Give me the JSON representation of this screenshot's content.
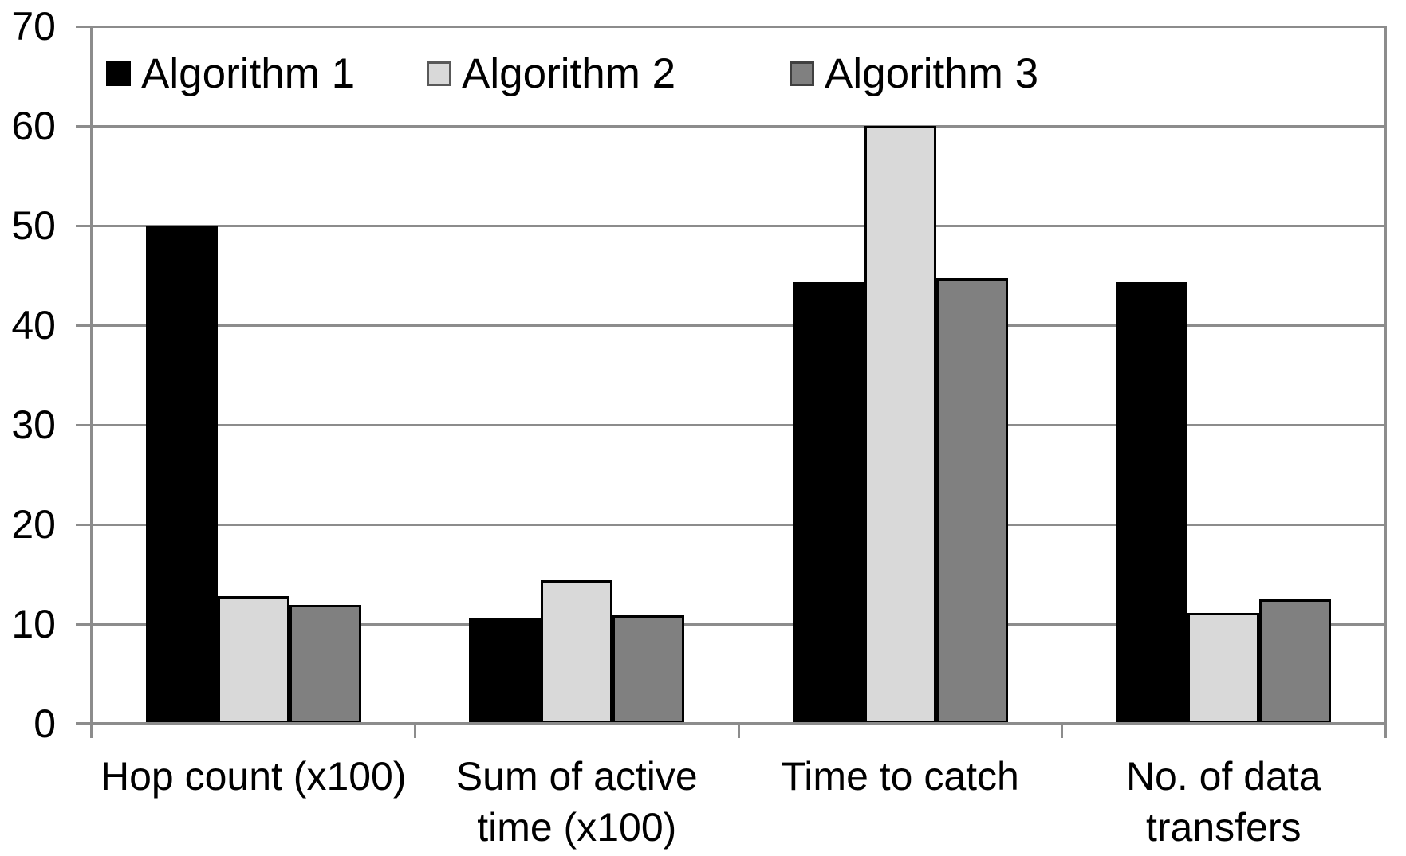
{
  "chart_data": {
    "type": "bar",
    "title": "",
    "xlabel": "",
    "ylabel": "",
    "categories": [
      "Hop count (x100)",
      "Sum of active time (x100)",
      "Time to catch",
      "No. of data transfers"
    ],
    "category_lines": [
      [
        "Hop count (x100)"
      ],
      [
        "Sum of active",
        "time (x100)"
      ],
      [
        "Time to catch"
      ],
      [
        "No. of data",
        "transfers"
      ]
    ],
    "series": [
      {
        "name": "Algorithm 1",
        "color": "#000000",
        "swatch_border": "#000000",
        "values": [
          50,
          10.6,
          44.3,
          44.3
        ]
      },
      {
        "name": "Algorithm 2",
        "color": "#d9d9d9",
        "swatch_border": "#595959",
        "values": [
          12.8,
          14.4,
          60,
          11.1
        ]
      },
      {
        "name": "Algorithm 3",
        "color": "#808080",
        "swatch_border": "#404040",
        "values": [
          11.9,
          10.9,
          44.7,
          12.5
        ]
      }
    ],
    "ylim": [
      0,
      70
    ],
    "ytick_step": 10,
    "yticks": [
      70,
      60,
      50,
      40,
      30,
      20,
      10,
      0
    ],
    "grid": true,
    "legend_position": "top-left-inside",
    "colors": {
      "gridline": "#8c8c8c",
      "axis": "#8c8c8c",
      "bar_border": "#000000",
      "text": "#000000",
      "background": "#ffffff"
    }
  }
}
